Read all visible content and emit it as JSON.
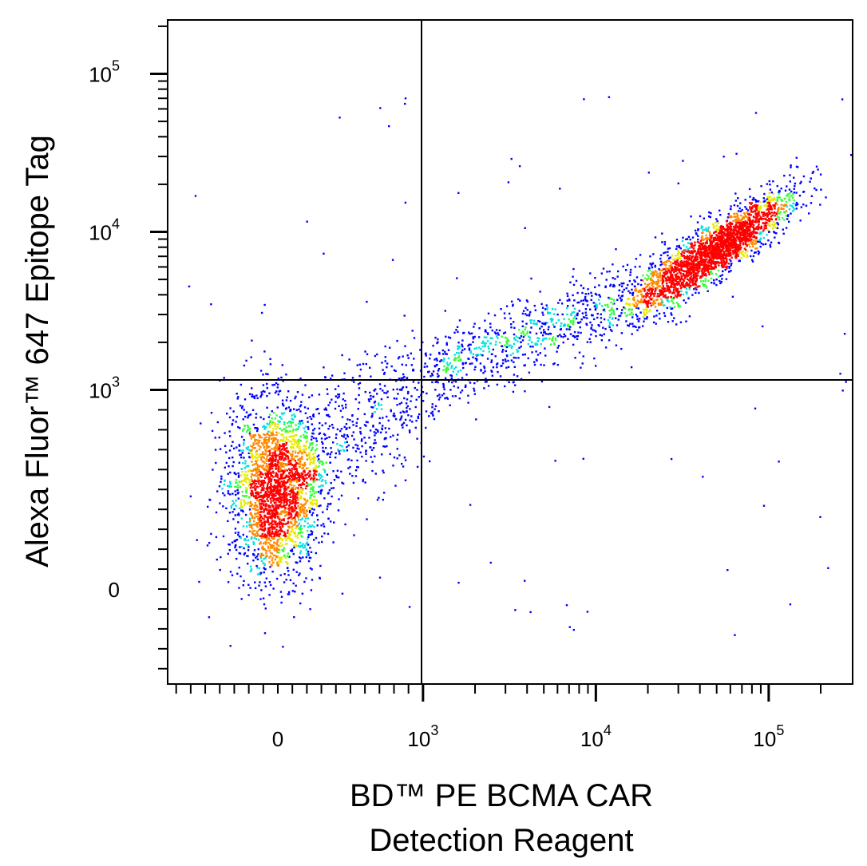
{
  "chart_data": {
    "type": "scatter",
    "title": "",
    "scale": "biexponential (logicle)",
    "xlabel_lines": [
      "BD™ PE BCMA CAR",
      "Detection Reagent"
    ],
    "ylabel": "Alexa Fluor™ 647 Epitope Tag",
    "x_ticks": [
      {
        "value": 0,
        "base": "0",
        "exp": ""
      },
      {
        "value": 1000,
        "base": "10",
        "exp": "3"
      },
      {
        "value": 10000,
        "base": "10",
        "exp": "4"
      },
      {
        "value": 100000,
        "base": "10",
        "exp": "5"
      }
    ],
    "y_ticks": [
      {
        "value": 0,
        "base": "0",
        "exp": ""
      },
      {
        "value": 1000,
        "base": "10",
        "exp": "3"
      },
      {
        "value": 10000,
        "base": "10",
        "exp": "4"
      },
      {
        "value": 100000,
        "base": "10",
        "exp": "5"
      }
    ],
    "gate": {
      "x": 900,
      "y": 1200
    },
    "coloring": "density (blue low → green → yellow → red high)",
    "populations": [
      {
        "x_center": 0,
        "y_center": 350,
        "description": "double-negative cluster, lower-left"
      },
      {
        "x_center": 35000,
        "y_center": 8000,
        "description": "CAR+ Epitope Tag+ diagonal cluster, upper-right"
      }
    ]
  }
}
